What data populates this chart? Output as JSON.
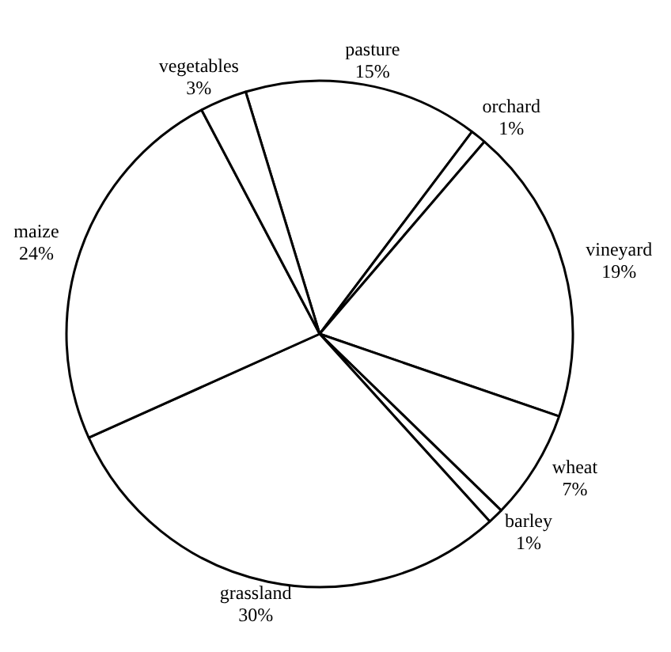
{
  "chart_data": {
    "type": "pie",
    "categories": [
      "pasture",
      "orchard",
      "vineyard",
      "wheat",
      "barley",
      "grassland",
      "maize",
      "vegetables"
    ],
    "values": [
      15,
      1,
      19,
      7,
      1,
      30,
      24,
      3
    ],
    "value_labels": [
      "15%",
      "1%",
      "19%",
      "7%",
      "1%",
      "30%",
      "24%",
      "3%"
    ],
    "colors": [
      "#ffffff",
      "#ffffff",
      "#ffffff",
      "#ffffff",
      "#ffffff",
      "#ffffff",
      "#ffffff",
      "#ffffff"
    ],
    "legend": false
  }
}
